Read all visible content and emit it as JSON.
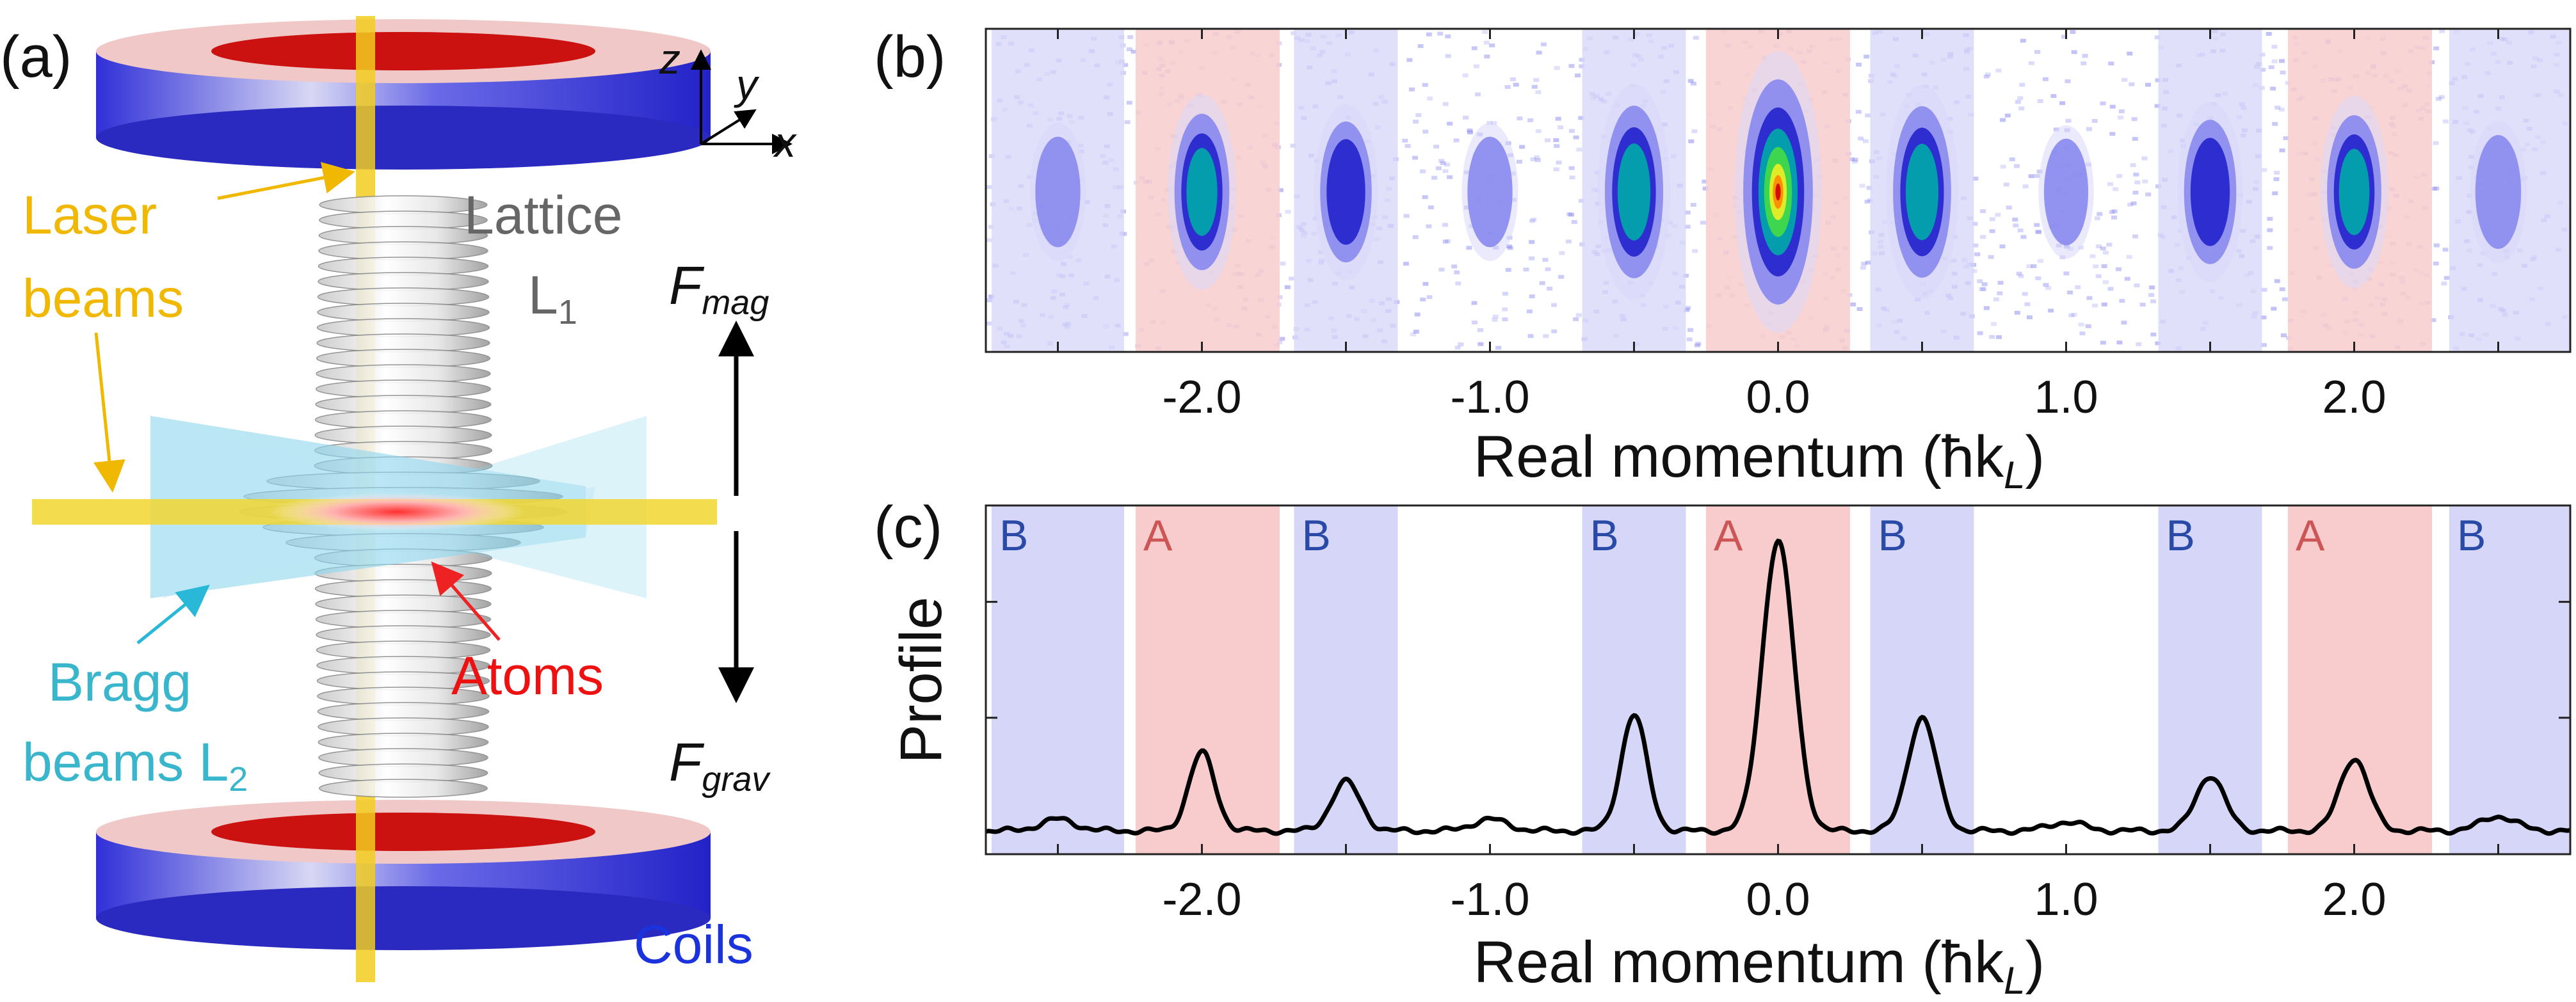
{
  "panel_a": {
    "label": "(a)",
    "axes": {
      "z": "z",
      "y": "y",
      "x": "x"
    },
    "laser_label": [
      "Laser",
      "beams"
    ],
    "lattice_label": [
      "Lattice",
      "L"
    ],
    "lattice_sub": "1",
    "bragg_label": [
      "Bragg",
      "beams L"
    ],
    "bragg_sub": "2",
    "atoms_label": "Atoms",
    "coils_label": "Coils",
    "fmag": {
      "main": "F",
      "sub": "mag"
    },
    "fgrav": {
      "main": "F",
      "sub": "grav"
    },
    "colors": {
      "coil": "#3333dd",
      "coil_inner": "#dd2222",
      "laser": "#f0c800",
      "bragg": "#7fd4ee",
      "atoms_text": "#ee1111",
      "coils_text": "#1a33dd"
    }
  },
  "panel_b": {
    "label": "(b)",
    "xlabel": "Real momentum (ħk",
    "xlabel_sub": "L",
    "xlabel_end": ")",
    "xticks": [
      "-2.0",
      "-1.0",
      "0.0",
      "1.0",
      "2.0"
    ]
  },
  "panel_c": {
    "label": "(c)",
    "ylabel": "Profile",
    "xlabel": "Real momentum (ħk",
    "xlabel_sub": "L",
    "xlabel_end": ")",
    "xticks": [
      "-2.0",
      "-1.0",
      "0.0",
      "1.0",
      "2.0"
    ]
  },
  "chart_data": {
    "type": "line",
    "xlim": [
      -2.75,
      2.75
    ],
    "ylim": [
      0,
      1.1
    ],
    "bands": [
      {
        "label": "B",
        "x0": -2.73,
        "x1": -2.27,
        "kind": "B"
      },
      {
        "label": "A",
        "x0": -2.23,
        "x1": -1.73,
        "kind": "A"
      },
      {
        "label": "B",
        "x0": -1.68,
        "x1": -1.32,
        "kind": "B"
      },
      {
        "label": "B",
        "x0": -0.68,
        "x1": -0.32,
        "kind": "B"
      },
      {
        "label": "A",
        "x0": -0.25,
        "x1": 0.25,
        "kind": "A"
      },
      {
        "label": "B",
        "x0": 0.32,
        "x1": 0.68,
        "kind": "B"
      },
      {
        "label": "B",
        "x0": 1.32,
        "x1": 1.68,
        "kind": "B"
      },
      {
        "label": "A",
        "x0": 1.77,
        "x1": 2.27,
        "kind": "A"
      },
      {
        "label": "B",
        "x0": 2.33,
        "x1": 2.75,
        "kind": "B"
      }
    ],
    "peaks": [
      {
        "x": -2.5,
        "h": 0.04,
        "w": 0.06
      },
      {
        "x": -2.0,
        "h": 0.27,
        "w": 0.045
      },
      {
        "x": -1.5,
        "h": 0.17,
        "w": 0.05
      },
      {
        "x": -1.0,
        "h": 0.04,
        "w": 0.06
      },
      {
        "x": -0.5,
        "h": 0.4,
        "w": 0.045
      },
      {
        "x": 0.0,
        "h": 1.0,
        "w": 0.055
      },
      {
        "x": 0.5,
        "h": 0.39,
        "w": 0.05
      },
      {
        "x": 1.0,
        "h": 0.03,
        "w": 0.06
      },
      {
        "x": 1.5,
        "h": 0.19,
        "w": 0.05
      },
      {
        "x": 2.0,
        "h": 0.25,
        "w": 0.05
      },
      {
        "x": 2.5,
        "h": 0.05,
        "w": 0.06
      }
    ],
    "band_colors": {
      "A": "#f8cccc",
      "B": "#d6d6f8"
    }
  }
}
